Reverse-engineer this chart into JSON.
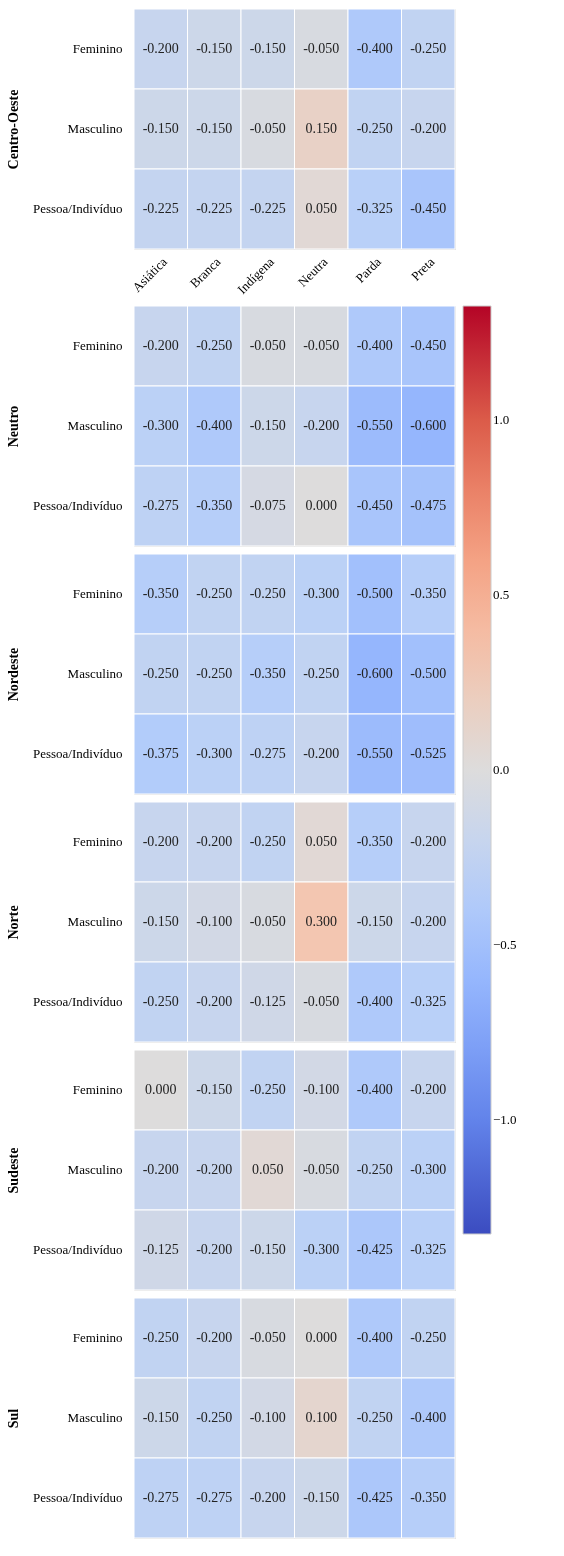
{
  "chart_data": [
    {
      "type": "heatmap",
      "ylabel": "Centro-Oeste",
      "data_labels": true,
      "categories": [
        "Asiática",
        "Branca",
        "Indígena",
        "Neutra",
        "Parda",
        "Preta"
      ],
      "y_categories": [
        "Feminino",
        "Masculino",
        "Pessoa/Indivíduo"
      ],
      "cells": [
        [
          -0.2,
          -0.15,
          -0.15,
          -0.05,
          -0.4,
          -0.25
        ],
        [
          -0.15,
          -0.15,
          -0.05,
          0.15,
          -0.25,
          -0.2
        ],
        [
          -0.225,
          -0.225,
          -0.225,
          0.05,
          -0.325,
          -0.45
        ]
      ],
      "cell_labels": [
        [
          "-0.200",
          "-0.150",
          "-0.150",
          "-0.050",
          "-0.400",
          "-0.250"
        ],
        [
          "-0.150",
          "-0.150",
          "-0.050",
          "0.150",
          "-0.250",
          "-0.200"
        ],
        [
          "-0.225",
          "-0.225",
          "-0.225",
          "0.050",
          "-0.325",
          "-0.450"
        ]
      ]
    },
    {
      "type": "heatmap",
      "ylabel": "Neutro",
      "data_labels": true,
      "categories": [
        null,
        null,
        null,
        null,
        null,
        null
      ],
      "y_categories": [
        "Feminino",
        "Masculino",
        "Pessoa/Indivíduo"
      ],
      "tick_labels": "y",
      "clim": [
        -1.325,
        1.325
      ],
      "cticks": [
        {
          "value": -1.0,
          "label": "−1.0"
        },
        {
          "value": -0.5,
          "label": "−0.5"
        },
        {
          "value": 0.0,
          "label": "0.0"
        },
        {
          "value": 0.5,
          "label": "0.5"
        },
        {
          "value": 1.0,
          "label": "1.0"
        }
      ],
      "cells": [
        [
          -0.2,
          -0.25,
          -0.05,
          -0.05,
          -0.4,
          -0.45
        ],
        [
          -0.3,
          -0.4,
          -0.15,
          -0.2,
          -0.55,
          -0.6
        ],
        [
          -0.275,
          -0.35,
          -0.075,
          0.0,
          -0.45,
          -0.475
        ]
      ],
      "cell_labels": [
        [
          "-0.200",
          "-0.250",
          "-0.050",
          "-0.050",
          "-0.400",
          "-0.450"
        ],
        [
          "-0.300",
          "-0.400",
          "-0.150",
          "-0.200",
          "-0.550",
          "-0.600"
        ],
        [
          "-0.275",
          "-0.350",
          "-0.075",
          "0.000",
          "-0.450",
          "-0.475"
        ]
      ]
    },
    {
      "type": "heatmap",
      "ylabel": "Nordeste",
      "data_labels": true,
      "categories": [
        null,
        null,
        null,
        null,
        null,
        null
      ],
      "y_categories": [
        "Feminino",
        "Masculino",
        "Pessoa/Indivíduo"
      ],
      "tick_labels": "y",
      "cells": [
        [
          -0.35,
          -0.25,
          -0.25,
          -0.3,
          -0.5,
          -0.35
        ],
        [
          -0.25,
          -0.25,
          -0.35,
          -0.25,
          -0.6,
          -0.5
        ],
        [
          -0.375,
          -0.3,
          -0.275,
          -0.2,
          -0.55,
          -0.525
        ]
      ],
      "cell_labels": [
        [
          "-0.350",
          "-0.250",
          "-0.250",
          "-0.300",
          "-0.500",
          "-0.350"
        ],
        [
          "-0.250",
          "-0.250",
          "-0.350",
          "-0.250",
          "-0.600",
          "-0.500"
        ],
        [
          "-0.375",
          "-0.300",
          "-0.275",
          "-0.200",
          "-0.550",
          "-0.525"
        ]
      ]
    },
    {
      "type": "heatmap",
      "ylabel": "Norte",
      "data_labels": true,
      "categories": [
        null,
        null,
        null,
        null,
        null,
        null
      ],
      "y_categories": [
        "Feminino",
        "Masculino",
        "Pessoa/Indivíduo"
      ],
      "tick_labels": "y",
      "cells": [
        [
          -0.2,
          -0.2,
          -0.25,
          0.05,
          -0.35,
          -0.2
        ],
        [
          -0.15,
          -0.1,
          -0.05,
          0.3,
          -0.15,
          -0.2
        ],
        [
          -0.25,
          -0.2,
          -0.125,
          -0.05,
          -0.4,
          -0.325
        ]
      ],
      "cell_labels": [
        [
          "-0.200",
          "-0.200",
          "-0.250",
          "0.050",
          "-0.350",
          "-0.200"
        ],
        [
          "-0.150",
          "-0.100",
          "-0.050",
          "0.300",
          "-0.150",
          "-0.200"
        ],
        [
          "-0.250",
          "-0.200",
          "-0.125",
          "-0.050",
          "-0.400",
          "-0.325"
        ]
      ]
    },
    {
      "type": "heatmap",
      "ylabel": "Sudeste",
      "data_labels": true,
      "categories": [
        null,
        null,
        null,
        null,
        null,
        null
      ],
      "y_categories": [
        "Feminino",
        "Masculino",
        "Pessoa/Indivíduo"
      ],
      "tick_labels": "y",
      "cells": [
        [
          0.0,
          -0.15,
          -0.25,
          -0.1,
          -0.4,
          -0.2
        ],
        [
          -0.2,
          -0.2,
          0.05,
          -0.05,
          -0.25,
          -0.3
        ],
        [
          -0.125,
          -0.2,
          -0.15,
          -0.3,
          -0.425,
          -0.325
        ]
      ],
      "cell_labels": [
        [
          "0.000",
          "-0.150",
          "-0.250",
          "-0.100",
          "-0.400",
          "-0.200"
        ],
        [
          "-0.200",
          "-0.200",
          "0.050",
          "-0.050",
          "-0.250",
          "-0.300"
        ],
        [
          "-0.125",
          "-0.200",
          "-0.150",
          "-0.300",
          "-0.425",
          "-0.325"
        ]
      ]
    },
    {
      "type": "heatmap",
      "ylabel": "Sul",
      "data_labels": true,
      "categories": [
        null,
        null,
        null,
        null,
        null,
        null
      ],
      "y_categories": [
        "Feminino",
        "Masculino",
        "Pessoa/Indivíduo"
      ],
      "tick_labels": "y",
      "cells": [
        [
          -0.25,
          -0.2,
          -0.05,
          0.0,
          -0.4,
          -0.25
        ],
        [
          -0.15,
          -0.25,
          -0.1,
          0.1,
          -0.25,
          -0.4
        ],
        [
          -0.275,
          -0.275,
          -0.2,
          -0.15,
          -0.425,
          -0.35
        ]
      ],
      "cell_labels": [
        [
          "-0.250",
          "-0.200",
          "-0.050",
          "0.000",
          "-0.400",
          "-0.250"
        ],
        [
          "-0.150",
          "-0.250",
          "-0.100",
          "0.100",
          "-0.250",
          "-0.400"
        ],
        [
          "-0.275",
          "-0.275",
          "-0.200",
          "-0.150",
          "-0.425",
          "-0.350"
        ]
      ]
    }
  ]
}
